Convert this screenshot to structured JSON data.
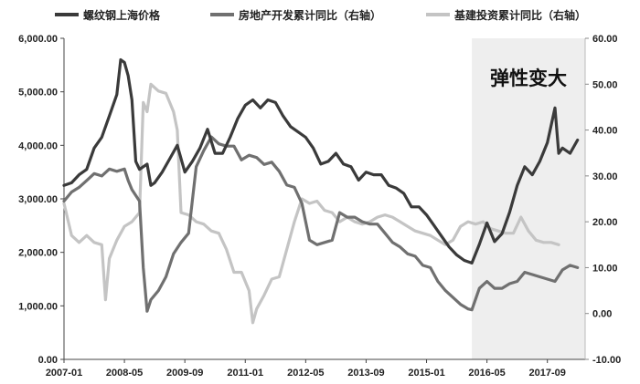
{
  "chart_data": {
    "type": "line",
    "title": "",
    "xlabel": "",
    "ylabel": "",
    "x_tick_labels": [
      "2007-01",
      "2008-05",
      "2009-09",
      "2011-01",
      "2012-05",
      "2013-09",
      "2015-01",
      "2016-05",
      "2017-09"
    ],
    "y_left": {
      "min": 0,
      "max": 6000,
      "ticks": [
        "0.00",
        "1,000.00",
        "2,000.00",
        "3,000.00",
        "4,000.00",
        "5,000.00",
        "6,000.00"
      ]
    },
    "y_right": {
      "min": -10,
      "max": 60,
      "ticks": [
        "-10.00",
        "0.00",
        "10.00",
        "20.00",
        "30.00",
        "40.00",
        "50.00",
        "60.00"
      ]
    },
    "legend_position": "top",
    "colors": {
      "rebar": "#3a3a3a",
      "property": "#707070",
      "infra": "#c4c4c4",
      "shade": "#eeeeee"
    },
    "annotation": {
      "text": "弹性变大",
      "from": "2016-01",
      "to": "2018-01"
    },
    "series": [
      {
        "name": "螺纹钢上海价格",
        "axis": "left",
        "points": [
          [
            "2007-01",
            3250
          ],
          [
            "2007-03",
            3300
          ],
          [
            "2007-05",
            3450
          ],
          [
            "2007-07",
            3550
          ],
          [
            "2007-09",
            3950
          ],
          [
            "2007-11",
            4150
          ],
          [
            "2008-01",
            4550
          ],
          [
            "2008-03",
            4950
          ],
          [
            "2008-04",
            5600
          ],
          [
            "2008-05",
            5550
          ],
          [
            "2008-06",
            5300
          ],
          [
            "2008-07",
            4850
          ],
          [
            "2008-08",
            3700
          ],
          [
            "2008-09",
            3550
          ],
          [
            "2008-10",
            3600
          ],
          [
            "2008-11",
            3650
          ],
          [
            "2008-12",
            3250
          ],
          [
            "2009-01",
            3300
          ],
          [
            "2009-03",
            3500
          ],
          [
            "2009-05",
            3750
          ],
          [
            "2009-07",
            4000
          ],
          [
            "2009-09",
            3500
          ],
          [
            "2009-11",
            3700
          ],
          [
            "2010-01",
            3950
          ],
          [
            "2010-03",
            4300
          ],
          [
            "2010-05",
            3850
          ],
          [
            "2010-07",
            3850
          ],
          [
            "2010-09",
            4150
          ],
          [
            "2010-11",
            4500
          ],
          [
            "2011-01",
            4750
          ],
          [
            "2011-03",
            4850
          ],
          [
            "2011-05",
            4700
          ],
          [
            "2011-07",
            4850
          ],
          [
            "2011-09",
            4800
          ],
          [
            "2011-11",
            4550
          ],
          [
            "2012-01",
            4350
          ],
          [
            "2012-03",
            4250
          ],
          [
            "2012-05",
            4150
          ],
          [
            "2012-07",
            3950
          ],
          [
            "2012-09",
            3650
          ],
          [
            "2012-11",
            3700
          ],
          [
            "2013-01",
            3850
          ],
          [
            "2013-03",
            3650
          ],
          [
            "2013-05",
            3600
          ],
          [
            "2013-07",
            3350
          ],
          [
            "2013-09",
            3500
          ],
          [
            "2013-11",
            3450
          ],
          [
            "2014-01",
            3450
          ],
          [
            "2014-03",
            3250
          ],
          [
            "2014-05",
            3200
          ],
          [
            "2014-07",
            3100
          ],
          [
            "2014-09",
            2850
          ],
          [
            "2014-11",
            2850
          ],
          [
            "2015-01",
            2700
          ],
          [
            "2015-03",
            2500
          ],
          [
            "2015-05",
            2300
          ],
          [
            "2015-07",
            2100
          ],
          [
            "2015-09",
            1950
          ],
          [
            "2015-11",
            1850
          ],
          [
            "2016-01",
            1800
          ],
          [
            "2016-03",
            2150
          ],
          [
            "2016-05",
            2550
          ],
          [
            "2016-07",
            2200
          ],
          [
            "2016-09",
            2350
          ],
          [
            "2016-11",
            2750
          ],
          [
            "2017-01",
            3250
          ],
          [
            "2017-03",
            3600
          ],
          [
            "2017-05",
            3450
          ],
          [
            "2017-07",
            3700
          ],
          [
            "2017-09",
            4050
          ],
          [
            "2017-11",
            4700
          ],
          [
            "2017-12",
            3850
          ],
          [
            "2018-01",
            3950
          ],
          [
            "2018-03",
            3850
          ],
          [
            "2018-05",
            4100
          ]
        ]
      },
      {
        "name": "房地产开发累计同比（右轴）",
        "axis": "right",
        "points": [
          [
            "2007-01",
            24.5
          ],
          [
            "2007-03",
            26.5
          ],
          [
            "2007-05",
            27.5
          ],
          [
            "2007-07",
            29
          ],
          [
            "2007-09",
            30.5
          ],
          [
            "2007-11",
            30
          ],
          [
            "2008-01",
            31.5
          ],
          [
            "2008-03",
            31
          ],
          [
            "2008-05",
            31.5
          ],
          [
            "2008-06",
            29
          ],
          [
            "2008-07",
            27
          ],
          [
            "2008-09",
            24.5
          ],
          [
            "2008-10",
            10
          ],
          [
            "2008-11",
            0.5
          ],
          [
            "2008-12",
            3
          ],
          [
            "2009-02",
            5
          ],
          [
            "2009-04",
            8
          ],
          [
            "2009-06",
            13
          ],
          [
            "2009-08",
            15.5
          ],
          [
            "2009-10",
            17.5
          ],
          [
            "2009-12",
            32
          ],
          [
            "2010-02",
            35.5
          ],
          [
            "2010-04",
            38.5
          ],
          [
            "2010-06",
            37
          ],
          [
            "2010-08",
            36.5
          ],
          [
            "2010-10",
            36.5
          ],
          [
            "2010-12",
            33.5
          ],
          [
            "2011-02",
            34.5
          ],
          [
            "2011-04",
            34
          ],
          [
            "2011-06",
            32.5
          ],
          [
            "2011-08",
            33
          ],
          [
            "2011-10",
            31
          ],
          [
            "2011-12",
            28
          ],
          [
            "2012-02",
            27.5
          ],
          [
            "2012-04",
            24
          ],
          [
            "2012-06",
            16
          ],
          [
            "2012-08",
            15
          ],
          [
            "2012-10",
            15.5
          ],
          [
            "2012-12",
            16
          ],
          [
            "2013-02",
            22
          ],
          [
            "2013-04",
            21
          ],
          [
            "2013-06",
            21
          ],
          [
            "2013-08",
            20
          ],
          [
            "2013-10",
            19.5
          ],
          [
            "2013-12",
            19.5
          ],
          [
            "2014-02",
            17.5
          ],
          [
            "2014-04",
            15.5
          ],
          [
            "2014-06",
            14.5
          ],
          [
            "2014-08",
            13
          ],
          [
            "2014-10",
            12.5
          ],
          [
            "2014-12",
            10.5
          ],
          [
            "2015-02",
            10
          ],
          [
            "2015-04",
            7
          ],
          [
            "2015-06",
            5
          ],
          [
            "2015-08",
            3.5
          ],
          [
            "2015-10",
            2
          ],
          [
            "2015-12",
            1
          ],
          [
            "2016-01",
            0.8
          ],
          [
            "2016-03",
            5.5
          ],
          [
            "2016-05",
            7
          ],
          [
            "2016-07",
            5.5
          ],
          [
            "2016-09",
            5.5
          ],
          [
            "2016-11",
            6.5
          ],
          [
            "2017-01",
            7
          ],
          [
            "2017-03",
            9
          ],
          [
            "2017-05",
            8.5
          ],
          [
            "2017-07",
            8
          ],
          [
            "2017-09",
            7.5
          ],
          [
            "2017-11",
            7
          ],
          [
            "2018-01",
            9.5
          ],
          [
            "2018-03",
            10.5
          ],
          [
            "2018-05",
            10
          ]
        ]
      },
      {
        "name": "基建投资累计同比（右轴）",
        "axis": "right",
        "points": [
          [
            "2007-01",
            24
          ],
          [
            "2007-03",
            17
          ],
          [
            "2007-05",
            15.5
          ],
          [
            "2007-07",
            17
          ],
          [
            "2007-09",
            15.5
          ],
          [
            "2007-11",
            15
          ],
          [
            "2007-12",
            3
          ],
          [
            "2008-01",
            12
          ],
          [
            "2008-03",
            16
          ],
          [
            "2008-05",
            19
          ],
          [
            "2008-07",
            20
          ],
          [
            "2008-09",
            22
          ],
          [
            "2008-10",
            46
          ],
          [
            "2008-11",
            44
          ],
          [
            "2008-12",
            50
          ],
          [
            "2009-02",
            48.5
          ],
          [
            "2009-04",
            48
          ],
          [
            "2009-06",
            44
          ],
          [
            "2009-07",
            40
          ],
          [
            "2009-08",
            22
          ],
          [
            "2009-10",
            21.5
          ],
          [
            "2009-12",
            20
          ],
          [
            "2010-02",
            19.5
          ],
          [
            "2010-04",
            18
          ],
          [
            "2010-06",
            17.5
          ],
          [
            "2010-08",
            14
          ],
          [
            "2010-10",
            9
          ],
          [
            "2010-12",
            9
          ],
          [
            "2011-02",
            5
          ],
          [
            "2011-03",
            -2
          ],
          [
            "2011-04",
            1
          ],
          [
            "2011-06",
            4
          ],
          [
            "2011-08",
            7.5
          ],
          [
            "2011-10",
            8
          ],
          [
            "2011-12",
            14
          ],
          [
            "2012-02",
            20
          ],
          [
            "2012-04",
            25
          ],
          [
            "2012-06",
            24
          ],
          [
            "2012-08",
            24.5
          ],
          [
            "2012-10",
            22.5
          ],
          [
            "2012-12",
            22
          ],
          [
            "2013-02",
            20
          ],
          [
            "2013-04",
            21
          ],
          [
            "2013-06",
            20
          ],
          [
            "2013-08",
            19.5
          ],
          [
            "2013-10",
            20
          ],
          [
            "2013-12",
            21
          ],
          [
            "2014-02",
            21.5
          ],
          [
            "2014-04",
            21
          ],
          [
            "2014-06",
            20
          ],
          [
            "2014-08",
            19
          ],
          [
            "2014-10",
            18
          ],
          [
            "2014-12",
            17.5
          ],
          [
            "2015-02",
            17
          ],
          [
            "2015-04",
            16
          ],
          [
            "2015-06",
            15
          ],
          [
            "2015-08",
            16
          ],
          [
            "2015-10",
            19
          ],
          [
            "2015-12",
            20
          ],
          [
            "2016-02",
            19.5
          ],
          [
            "2016-04",
            20
          ],
          [
            "2016-06",
            18.5
          ],
          [
            "2016-08",
            18
          ],
          [
            "2016-10",
            17.5
          ],
          [
            "2016-12",
            17.5
          ],
          [
            "2017-02",
            21
          ],
          [
            "2017-04",
            18
          ],
          [
            "2017-06",
            16
          ],
          [
            "2017-08",
            15.5
          ],
          [
            "2017-10",
            15.5
          ],
          [
            "2017-12",
            15
          ]
        ]
      }
    ]
  }
}
